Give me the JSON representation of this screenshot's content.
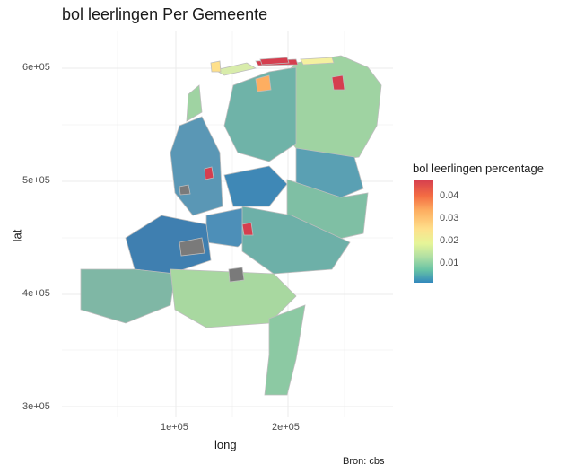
{
  "title": "bol leerlingen Per Gemeente",
  "axes": {
    "xlabel": "long",
    "ylabel": "lat",
    "x_ticks": [
      "1e+05",
      "2e+05"
    ],
    "y_ticks": [
      "6e+05",
      "5e+05",
      "4e+05",
      "3e+05"
    ]
  },
  "legend": {
    "title": "bol leerlingen percentage",
    "ticks": [
      "0.04",
      "0.03",
      "0.02",
      "0.01"
    ],
    "colors": [
      "#d53e4f",
      "#f46d43",
      "#fdae61",
      "#fee08b",
      "#e6f598",
      "#abdda4",
      "#66c2a5",
      "#3288bd"
    ]
  },
  "caption": "Bron: cbs",
  "colors": {
    "missing": "#7a7a7a",
    "grid": "#ebebeb",
    "border": "#bdbdbd"
  },
  "chart_data": {
    "type": "choropleth",
    "title": "bol leerlingen Per Gemeente",
    "xlabel": "long",
    "ylabel": "lat",
    "xlim": [
      0,
      300000
    ],
    "ylim": [
      290000,
      625000
    ],
    "color_scale": {
      "name": "Spectral",
      "min": 0.0,
      "max": 0.048,
      "legend_position": "right"
    },
    "grid": true
  }
}
